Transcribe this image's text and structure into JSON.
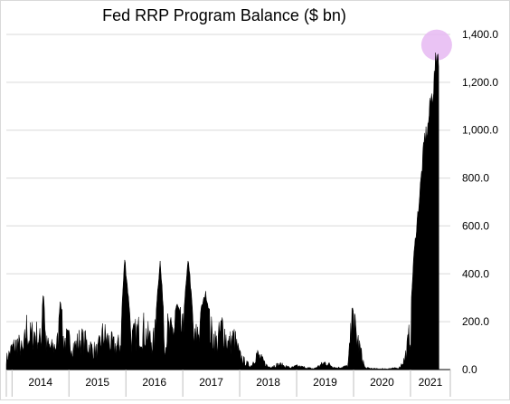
{
  "chart_data": {
    "type": "area",
    "title": "Fed RRP Program Balance ($ bn)",
    "xlabel": "",
    "ylabel": "",
    "ylim": [
      0,
      1400
    ],
    "yticks": [
      0,
      200,
      400,
      600,
      800,
      1000,
      1200,
      1400
    ],
    "ytick_labels": [
      "0.0",
      "200.0",
      "400.0",
      "600.0",
      "800.0",
      "1,000.0",
      "1,200.0",
      "1,400.0"
    ],
    "x_categories": [
      "2014",
      "2015",
      "2016",
      "2017",
      "2018",
      "2019",
      "2020",
      "2021"
    ],
    "x_range": [
      2013.9,
      2021.7
    ],
    "grid": "horizontal",
    "legend": "none",
    "series_color": "#000000",
    "highlight": {
      "x": 2021.46,
      "y": 1356,
      "color": "#e6b8f2"
    },
    "x": [
      2013.9,
      2014.0,
      2014.1,
      2014.2,
      2014.25,
      2014.3,
      2014.4,
      2014.5,
      2014.55,
      2014.6,
      2014.7,
      2014.8,
      2014.85,
      2014.9,
      2015.0,
      2015.1,
      2015.2,
      2015.3,
      2015.4,
      2015.5,
      2015.6,
      2015.7,
      2015.8,
      2015.9,
      2015.98,
      2016.1,
      2016.2,
      2016.3,
      2016.4,
      2016.5,
      2016.6,
      2016.7,
      2016.72,
      2016.8,
      2016.9,
      2017.0,
      2017.1,
      2017.2,
      2017.3,
      2017.4,
      2017.5,
      2017.6,
      2017.7,
      2017.8,
      2017.9,
      2018.0,
      2018.1,
      2018.2,
      2018.3,
      2018.5,
      2018.7,
      2018.9,
      2019.0,
      2019.3,
      2019.5,
      2019.7,
      2019.9,
      2019.98,
      2020.2,
      2020.4,
      2020.6,
      2020.8,
      2020.9,
      2021.0,
      2021.05,
      2021.1,
      2021.15,
      2021.2,
      2021.25,
      2021.3,
      2021.35,
      2021.4,
      2021.43,
      2021.46,
      2021.5
    ],
    "values": [
      60,
      120,
      150,
      100,
      240,
      180,
      210,
      160,
      340,
      140,
      120,
      150,
      310,
      170,
      160,
      130,
      170,
      150,
      120,
      100,
      200,
      160,
      130,
      140,
      480,
      170,
      210,
      230,
      180,
      160,
      470,
      130,
      230,
      200,
      280,
      210,
      480,
      160,
      240,
      330,
      210,
      150,
      250,
      140,
      180,
      80,
      40,
      20,
      90,
      15,
      30,
      10,
      20,
      5,
      40,
      10,
      20,
      280,
      10,
      5,
      5,
      10,
      60,
      220,
      460,
      600,
      720,
      860,
      1000,
      1030,
      1150,
      1200,
      1290,
      1356,
      1360
    ]
  }
}
